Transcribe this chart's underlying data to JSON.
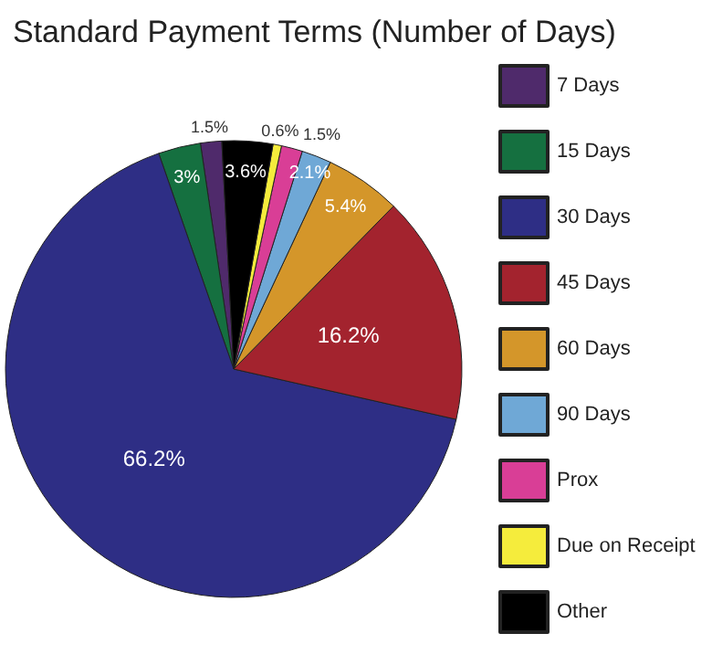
{
  "chart_data": {
    "type": "pie",
    "title": "Standard Payment Terms (Number of Days)",
    "categories": [
      "7 Days",
      "15 Days",
      "30 Days",
      "45 Days",
      "60 Days",
      "90 Days",
      "Prox",
      "Due on Receipt",
      "Other"
    ],
    "values": [
      1.5,
      3,
      66.2,
      16.2,
      5.4,
      2.1,
      1.5,
      0.6,
      3.6
    ],
    "value_labels": [
      "1.5%",
      "3%",
      "66.2%",
      "16.2%",
      "5.4%",
      "2.1%",
      "1.5%",
      "0.6%",
      "3.6%"
    ],
    "colors": [
      "#4f2a6b",
      "#157040",
      "#2e2e85",
      "#a3232e",
      "#d4962a",
      "#6fa8d6",
      "#d93e96",
      "#f5ec3c",
      "#000000"
    ],
    "legend": "right"
  }
}
